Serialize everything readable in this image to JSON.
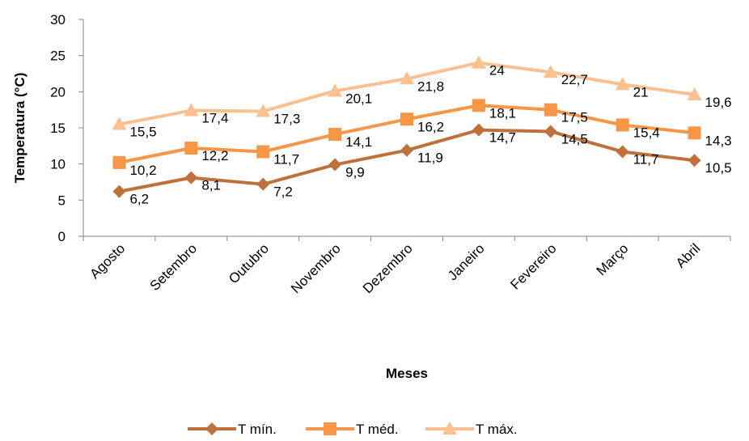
{
  "chart_data": {
    "type": "line",
    "title": "",
    "xlabel": "Meses",
    "ylabel": "Temperatura (°C)",
    "ylim": [
      0,
      30
    ],
    "yticks": [
      0,
      5,
      10,
      15,
      20,
      25,
      30
    ],
    "categories": [
      "Agosto",
      "Setembro",
      "Outubro",
      "Novembro",
      "Dezembro",
      "Janeiro",
      "Fevereiro",
      "Março",
      "Abril"
    ],
    "grid": false,
    "legend_position": "bottom",
    "series": [
      {
        "name": "T mín.",
        "marker": "diamond",
        "color": "#c0703a",
        "values": [
          6.2,
          8.1,
          7.2,
          9.9,
          11.9,
          14.7,
          14.5,
          11.7,
          10.5
        ],
        "labels": [
          "6,2",
          "8,1",
          "7,2",
          "9,9",
          "11,9",
          "14,7",
          "14,5",
          "11,7",
          "10,5"
        ]
      },
      {
        "name": "T méd.",
        "marker": "square",
        "color": "#f79646",
        "values": [
          10.2,
          12.2,
          11.7,
          14.1,
          16.2,
          18.1,
          17.5,
          15.4,
          14.3
        ],
        "labels": [
          "10,2",
          "12,2",
          "11,7",
          "14,1",
          "16,2",
          "18,1",
          "17,5",
          "15,4",
          "14,3"
        ]
      },
      {
        "name": "T máx.",
        "marker": "triangle",
        "color": "#fac090",
        "values": [
          15.5,
          17.4,
          17.3,
          20.1,
          21.8,
          24,
          22.7,
          21,
          19.6
        ],
        "labels": [
          "15,5",
          "17,4",
          "17,3",
          "20,1",
          "21,8",
          "24",
          "22,7",
          "21",
          "19,6"
        ]
      }
    ]
  }
}
